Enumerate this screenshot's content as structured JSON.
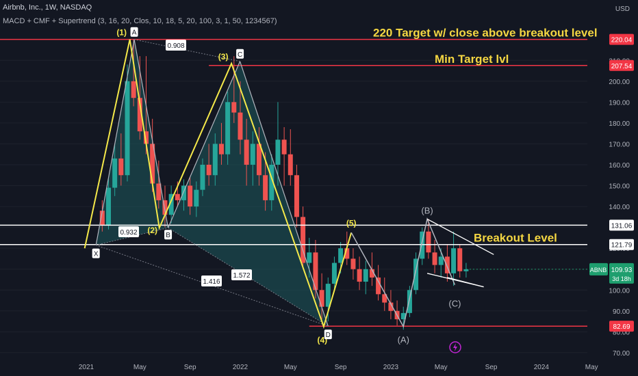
{
  "header": {
    "title": "Airbnb, Inc., 1W, NASDAQ",
    "indicators": "MACD + CMF + Supertrend (3, 16, 20, Clos, 10, 18, 5, 20, 100, 3, 1, 50, 1234567)",
    "currency": "USD"
  },
  "colors": {
    "background": "#131722",
    "up": "#26a69a",
    "down": "#ef5350",
    "pattern_line": "#f5e94a",
    "pattern_fill": "#1d5a5d",
    "grey_line": "#b2b5be",
    "target_line": "#f23645",
    "level_line": "#ffffff",
    "annotation_text": "#f5d742",
    "last_price_tag": "#1e9e6e"
  },
  "chart_data": {
    "type": "candlestick",
    "symbol": "ABNB",
    "ylim": [
      68,
      233
    ],
    "x_ticks": [
      "2021",
      "May",
      "Sep",
      "2022",
      "May",
      "Sep",
      "2023",
      "May",
      "Sep",
      "2024",
      "May"
    ],
    "y_ticks": [
      70,
      80,
      90,
      100,
      110,
      120,
      130,
      140,
      150,
      160,
      170,
      180,
      190,
      200,
      210
    ],
    "horizontal_levels": [
      {
        "value": 220.04,
        "label": "220.04",
        "style": "target"
      },
      {
        "value": 207.54,
        "label": "207.54",
        "style": "target"
      },
      {
        "value": 131.06,
        "label": "131.06",
        "style": "level"
      },
      {
        "value": 121.79,
        "label": "121.79",
        "style": "level"
      },
      {
        "value": 82.69,
        "label": "82.69",
        "style": "target"
      }
    ],
    "last_price": {
      "value": 109.93,
      "label": "109.93",
      "ticker": "ABNB",
      "countdown": "3d 18h"
    },
    "annotations": [
      {
        "text": "220 Target w/ close above breakout level"
      },
      {
        "text": "Min Target lvl"
      },
      {
        "text": "Breakout Level"
      }
    ],
    "harmonic_ratios": [
      "0.908",
      "0.932",
      "1.416",
      "1.572"
    ],
    "xabcd_points": [
      {
        "label": "X",
        "t": 0.5,
        "price": 121.5
      },
      {
        "label": "A",
        "t": 3.55,
        "price": 220
      },
      {
        "label": "B",
        "t": 6.25,
        "price": 129.8
      },
      {
        "label": "C",
        "t": 11.98,
        "price": 209.5
      },
      {
        "label": "D",
        "t": 19.0,
        "price": 82.7
      }
    ],
    "yellow_wave": [
      {
        "label": "(1)",
        "t": 3.2,
        "price": 220
      },
      {
        "label": "(2)",
        "t": 5.55,
        "price": 129.8
      },
      {
        "label": "(3)",
        "t": 11.3,
        "price": 208.5
      },
      {
        "label": "(4)",
        "t": 18.65,
        "price": 82.5
      },
      {
        "label": "(5)",
        "t": 20.85,
        "price": 127.5
      }
    ],
    "start_point": {
      "t": -0.4,
      "price": 120
    },
    "abc_wave": [
      {
        "label": "(A)",
        "t": 25.0,
        "price": 82.5
      },
      {
        "label": "(B)",
        "t": 26.9,
        "price": 134
      },
      {
        "label": "(C)",
        "t": 29.1,
        "price": 102.5
      }
    ],
    "candles": [
      {
        "t": 1.0,
        "o": 138,
        "h": 143,
        "l": 128,
        "c": 131
      },
      {
        "t": 1.5,
        "o": 131,
        "h": 154,
        "l": 129,
        "c": 149
      },
      {
        "t": 2.0,
        "o": 149,
        "h": 170,
        "l": 145,
        "c": 163
      },
      {
        "t": 2.5,
        "o": 163,
        "h": 175,
        "l": 150,
        "c": 155
      },
      {
        "t": 3.0,
        "o": 155,
        "h": 208,
        "l": 152,
        "c": 200
      },
      {
        "t": 3.5,
        "o": 200,
        "h": 220,
        "l": 188,
        "c": 192
      },
      {
        "t": 4.0,
        "o": 192,
        "h": 212,
        "l": 172,
        "c": 176
      },
      {
        "t": 4.5,
        "o": 176,
        "h": 212,
        "l": 165,
        "c": 170
      },
      {
        "t": 5.0,
        "o": 170,
        "h": 182,
        "l": 147,
        "c": 151
      },
      {
        "t": 5.5,
        "o": 151,
        "h": 162,
        "l": 139,
        "c": 143
      },
      {
        "t": 6.0,
        "o": 143,
        "h": 150,
        "l": 130,
        "c": 136
      },
      {
        "t": 6.5,
        "o": 136,
        "h": 150,
        "l": 132,
        "c": 146
      },
      {
        "t": 7.0,
        "o": 146,
        "h": 152,
        "l": 140,
        "c": 143
      },
      {
        "t": 7.5,
        "o": 143,
        "h": 153,
        "l": 138,
        "c": 150
      },
      {
        "t": 8.0,
        "o": 150,
        "h": 154,
        "l": 136,
        "c": 140
      },
      {
        "t": 8.5,
        "o": 140,
        "h": 152,
        "l": 135,
        "c": 148
      },
      {
        "t": 9.0,
        "o": 148,
        "h": 163,
        "l": 145,
        "c": 160
      },
      {
        "t": 9.5,
        "o": 160,
        "h": 170,
        "l": 150,
        "c": 155
      },
      {
        "t": 10.0,
        "o": 155,
        "h": 175,
        "l": 150,
        "c": 170
      },
      {
        "t": 10.5,
        "o": 170,
        "h": 180,
        "l": 160,
        "c": 165
      },
      {
        "t": 11.0,
        "o": 165,
        "h": 195,
        "l": 160,
        "c": 190
      },
      {
        "t": 11.5,
        "o": 190,
        "h": 212,
        "l": 180,
        "c": 185
      },
      {
        "t": 12.0,
        "o": 185,
        "h": 200,
        "l": 165,
        "c": 172
      },
      {
        "t": 12.5,
        "o": 172,
        "h": 182,
        "l": 150,
        "c": 160
      },
      {
        "t": 13.0,
        "o": 160,
        "h": 176,
        "l": 150,
        "c": 170
      },
      {
        "t": 13.5,
        "o": 170,
        "h": 178,
        "l": 150,
        "c": 155
      },
      {
        "t": 14.0,
        "o": 155,
        "h": 166,
        "l": 138,
        "c": 143
      },
      {
        "t": 14.5,
        "o": 143,
        "h": 165,
        "l": 138,
        "c": 160
      },
      {
        "t": 15.0,
        "o": 160,
        "h": 190,
        "l": 150,
        "c": 172
      },
      {
        "t": 15.5,
        "o": 172,
        "h": 178,
        "l": 150,
        "c": 165
      },
      {
        "t": 16.0,
        "o": 165,
        "h": 177,
        "l": 150,
        "c": 155
      },
      {
        "t": 16.5,
        "o": 155,
        "h": 160,
        "l": 130,
        "c": 135
      },
      {
        "t": 17.0,
        "o": 135,
        "h": 140,
        "l": 110,
        "c": 113
      },
      {
        "t": 17.5,
        "o": 113,
        "h": 125,
        "l": 106,
        "c": 118
      },
      {
        "t": 18.0,
        "o": 118,
        "h": 124,
        "l": 96,
        "c": 100
      },
      {
        "t": 18.5,
        "o": 100,
        "h": 108,
        "l": 86,
        "c": 92
      },
      {
        "t": 19.0,
        "o": 92,
        "h": 106,
        "l": 85,
        "c": 103
      },
      {
        "t": 19.5,
        "o": 103,
        "h": 116,
        "l": 100,
        "c": 113
      },
      {
        "t": 20.0,
        "o": 113,
        "h": 123,
        "l": 108,
        "c": 120
      },
      {
        "t": 20.5,
        "o": 120,
        "h": 128,
        "l": 112,
        "c": 115
      },
      {
        "t": 21.0,
        "o": 115,
        "h": 120,
        "l": 105,
        "c": 110
      },
      {
        "t": 21.5,
        "o": 110,
        "h": 116,
        "l": 100,
        "c": 104
      },
      {
        "t": 22.0,
        "o": 104,
        "h": 114,
        "l": 98,
        "c": 110
      },
      {
        "t": 22.5,
        "o": 110,
        "h": 118,
        "l": 102,
        "c": 106
      },
      {
        "t": 23.0,
        "o": 106,
        "h": 112,
        "l": 95,
        "c": 98
      },
      {
        "t": 23.5,
        "o": 98,
        "h": 106,
        "l": 90,
        "c": 94
      },
      {
        "t": 24.0,
        "o": 94,
        "h": 100,
        "l": 86,
        "c": 90
      },
      {
        "t": 24.5,
        "o": 90,
        "h": 95,
        "l": 83,
        "c": 86
      },
      {
        "t": 25.0,
        "o": 86,
        "h": 92,
        "l": 81,
        "c": 89
      },
      {
        "t": 25.5,
        "o": 89,
        "h": 102,
        "l": 87,
        "c": 100
      },
      {
        "t": 26.0,
        "o": 100,
        "h": 118,
        "l": 98,
        "c": 115
      },
      {
        "t": 26.5,
        "o": 115,
        "h": 130,
        "l": 112,
        "c": 128
      },
      {
        "t": 27.0,
        "o": 128,
        "h": 134,
        "l": 115,
        "c": 118
      },
      {
        "t": 27.5,
        "o": 118,
        "h": 124,
        "l": 108,
        "c": 112
      },
      {
        "t": 28.0,
        "o": 112,
        "h": 120,
        "l": 106,
        "c": 116
      },
      {
        "t": 28.5,
        "o": 116,
        "h": 122,
        "l": 104,
        "c": 108
      },
      {
        "t": 29.0,
        "o": 108,
        "h": 128,
        "l": 102,
        "c": 120
      },
      {
        "t": 29.5,
        "o": 120,
        "h": 122,
        "l": 106,
        "c": 109
      },
      {
        "t": 30.0,
        "o": 109,
        "h": 113,
        "l": 106,
        "c": 109.93
      }
    ]
  }
}
